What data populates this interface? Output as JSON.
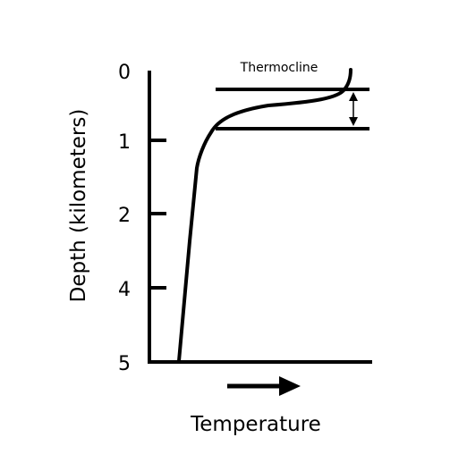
{
  "diagram": {
    "annotation": "Thermocline",
    "y_axis_label": "Depth (kilometers)",
    "x_axis_label": "Temperature",
    "depth_ticks": [
      "0",
      "1",
      "2",
      "4",
      "5"
    ],
    "line_color": "#000000",
    "background_color": "#ffffff"
  }
}
